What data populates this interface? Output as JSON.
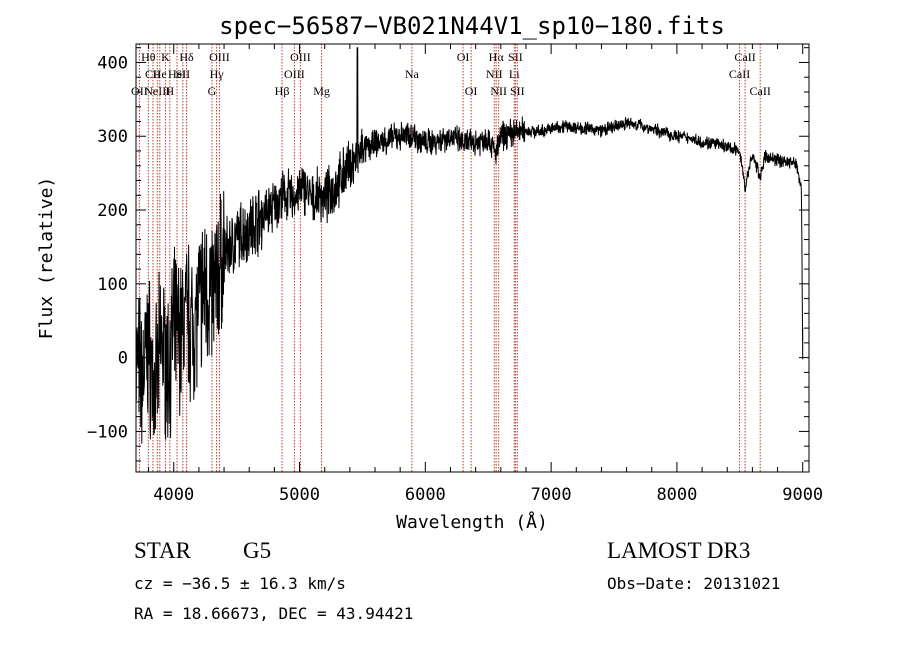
{
  "chart_data": {
    "type": "line",
    "title": "spec−56587−VB021N44V1_sp10−180.fits",
    "xlabel": "Wavelength (Å)",
    "ylabel": "Flux (relative)",
    "xlim": [
      3700,
      9050
    ],
    "ylim": [
      -155,
      425
    ],
    "xticks": [
      4000,
      5000,
      6000,
      7000,
      8000,
      9000
    ],
    "xtick_labels": [
      "4000",
      "5000",
      "6000",
      "7000",
      "8000",
      "9000"
    ],
    "yticks": [
      -100,
      0,
      100,
      200,
      300,
      400
    ],
    "ytick_labels": [
      "−100",
      "0",
      "100",
      "200",
      "300",
      "400"
    ],
    "series": [
      {
        "name": "flux",
        "x": [
          3700,
          3750,
          3800,
          3850,
          3900,
          3950,
          4000,
          4050,
          4100,
          4150,
          4200,
          4250,
          4300,
          4350,
          4400,
          4450,
          4500,
          4550,
          4600,
          4650,
          4700,
          4750,
          4800,
          4850,
          4900,
          4950,
          5000,
          5050,
          5100,
          5150,
          5200,
          5250,
          5300,
          5350,
          5400,
          5450,
          5500,
          5600,
          5700,
          5800,
          5900,
          6000,
          6100,
          6200,
          6300,
          6400,
          6500,
          6563,
          6600,
          6700,
          6800,
          6900,
          7000,
          7100,
          7200,
          7300,
          7400,
          7500,
          7600,
          7700,
          7800,
          7900,
          8000,
          8100,
          8200,
          8300,
          8400,
          8500,
          8542,
          8600,
          8662,
          8700,
          8800,
          8900,
          8950,
          8990,
          9000
        ],
        "values": [
          0,
          -30,
          20,
          -60,
          30,
          -20,
          40,
          30,
          60,
          40,
          70,
          100,
          80,
          110,
          140,
          150,
          160,
          170,
          175,
          185,
          190,
          200,
          205,
          215,
          220,
          215,
          225,
          230,
          210,
          220,
          215,
          225,
          235,
          250,
          260,
          270,
          280,
          290,
          295,
          300,
          302,
          290,
          295,
          300,
          290,
          292,
          298,
          275,
          300,
          305,
          308,
          306,
          310,
          314,
          312,
          310,
          308,
          312,
          318,
          315,
          310,
          305,
          300,
          298,
          292,
          290,
          285,
          280,
          230,
          275,
          245,
          272,
          268,
          265,
          262,
          230,
          0
        ]
      }
    ],
    "lines": [
      {
        "wl": 3727,
        "row": 2,
        "label": "OII"
      },
      {
        "wl": 3798,
        "row": 0,
        "label": "Hθ"
      },
      {
        "wl": 3835,
        "row": 1,
        "label": "CII"
      },
      {
        "wl": 3869,
        "row": 2,
        "label": "NeIII"
      },
      {
        "wl": 3889,
        "row": 1,
        "label": "He"
      },
      {
        "wl": 3934,
        "row": 0,
        "label": "K"
      },
      {
        "wl": 3969,
        "row": 2,
        "label": "H"
      },
      {
        "wl": 4026,
        "row": 1,
        "label": "HeI"
      },
      {
        "wl": 4072,
        "row": 1,
        "label": "SII"
      },
      {
        "wl": 4102,
        "row": 0,
        "label": "Hδ"
      },
      {
        "wl": 4304,
        "row": 2,
        "label": "G"
      },
      {
        "wl": 4341,
        "row": 1,
        "label": "Hγ"
      },
      {
        "wl": 4363,
        "row": 0,
        "label": "OIII"
      },
      {
        "wl": 4861,
        "row": 2,
        "label": "Hβ"
      },
      {
        "wl": 4959,
        "row": 1,
        "label": "OIII"
      },
      {
        "wl": 5007,
        "row": 0,
        "label": "OIII"
      },
      {
        "wl": 5175,
        "row": 2,
        "label": "Mg"
      },
      {
        "wl": 5893,
        "row": 1,
        "label": "Na"
      },
      {
        "wl": 6300,
        "row": 0,
        "label": "OI"
      },
      {
        "wl": 6364,
        "row": 2,
        "label": "OI"
      },
      {
        "wl": 6548,
        "row": 1,
        "label": "NII"
      },
      {
        "wl": 6563,
        "row": 0,
        "label": "Hα"
      },
      {
        "wl": 6583,
        "row": 2,
        "label": "NII"
      },
      {
        "wl": 6707,
        "row": 1,
        "label": "Li"
      },
      {
        "wl": 6716,
        "row": 0,
        "label": "SII"
      },
      {
        "wl": 6731,
        "row": 2,
        "label": "SII"
      },
      {
        "wl": 8498,
        "row": 1,
        "label": "CaII"
      },
      {
        "wl": 8542,
        "row": 0,
        "label": "CaII"
      },
      {
        "wl": 8662,
        "row": 2,
        "label": "CaII"
      }
    ]
  },
  "info": {
    "class": "STAR",
    "subclass": "G5",
    "survey": "LAMOST DR3",
    "cz": "cz = −36.5 ± 16.3 km/s",
    "obs_date": "Obs−Date: 20131021",
    "coords": "RA =  18.66673, DEC =  43.94421"
  },
  "colors": {
    "axis": "#000000",
    "line_marker": "#c0392b",
    "spectrum": "#000000"
  }
}
